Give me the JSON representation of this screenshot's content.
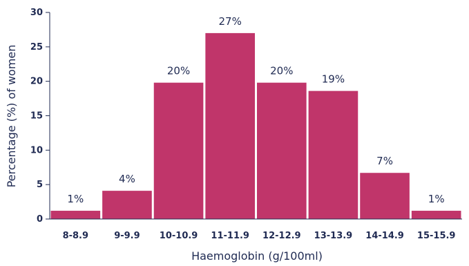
{
  "chart_data": {
    "type": "bar",
    "title": "",
    "xlabel": "Haemoglobin (g/100ml)",
    "ylabel": "Percentage (%) of women",
    "ylim": [
      0,
      30
    ],
    "yticks": [
      0,
      5,
      10,
      15,
      20,
      25,
      30
    ],
    "categories": [
      "8-8.9",
      "9-9.9",
      "10-10.9",
      "11-11.9",
      "12-12.9",
      "13-13.9",
      "14-14.9",
      "15-15.9"
    ],
    "values": [
      1.2,
      4.1,
      19.8,
      27,
      19.8,
      18.6,
      6.7,
      1.2
    ],
    "data_labels": [
      "1%",
      "4%",
      "20%",
      "27%",
      "20%",
      "19%",
      "7%",
      "1%"
    ],
    "grid": false,
    "colors": {
      "bar": "#c0356a",
      "axis": "#1f2a52",
      "text": "#1f2a52"
    }
  }
}
